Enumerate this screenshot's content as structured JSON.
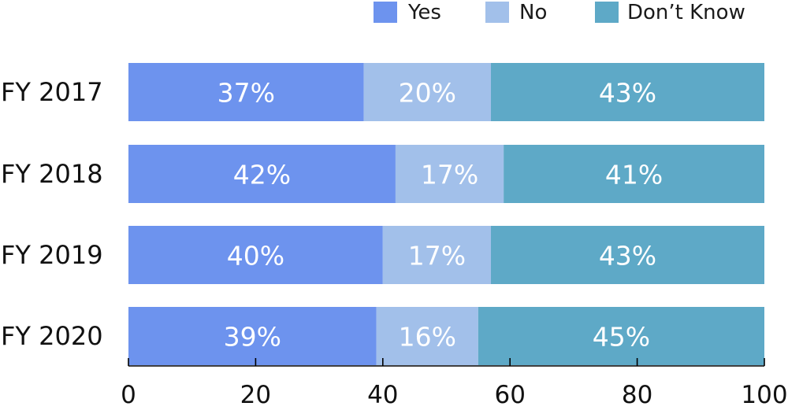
{
  "chart_data": {
    "type": "bar",
    "orientation": "horizontal",
    "stacked": true,
    "percent": true,
    "categories": [
      "FY 2017",
      "FY 2018",
      "FY 2019",
      "FY 2020"
    ],
    "series": [
      {
        "name": "Yes",
        "color": "#6d93ee",
        "values": [
          37,
          42,
          40,
          39
        ],
        "labels": [
          "37%",
          "42%",
          "40%",
          "39%"
        ]
      },
      {
        "name": "No",
        "color": "#a2c0ea",
        "values": [
          20,
          17,
          17,
          16
        ],
        "labels": [
          "20%",
          "17%",
          "17%",
          "16%"
        ]
      },
      {
        "name": "Don’t Know",
        "color": "#5ea9c7",
        "values": [
          43,
          41,
          43,
          45
        ],
        "labels": [
          "43%",
          "41%",
          "43%",
          "45%"
        ]
      }
    ],
    "xlim": [
      0,
      100
    ],
    "xticks": [
      0,
      20,
      40,
      60,
      80,
      100
    ],
    "xtick_labels": [
      "0",
      "20",
      "40",
      "60",
      "80",
      "100"
    ],
    "legend_position": "top-right",
    "grid": false
  }
}
